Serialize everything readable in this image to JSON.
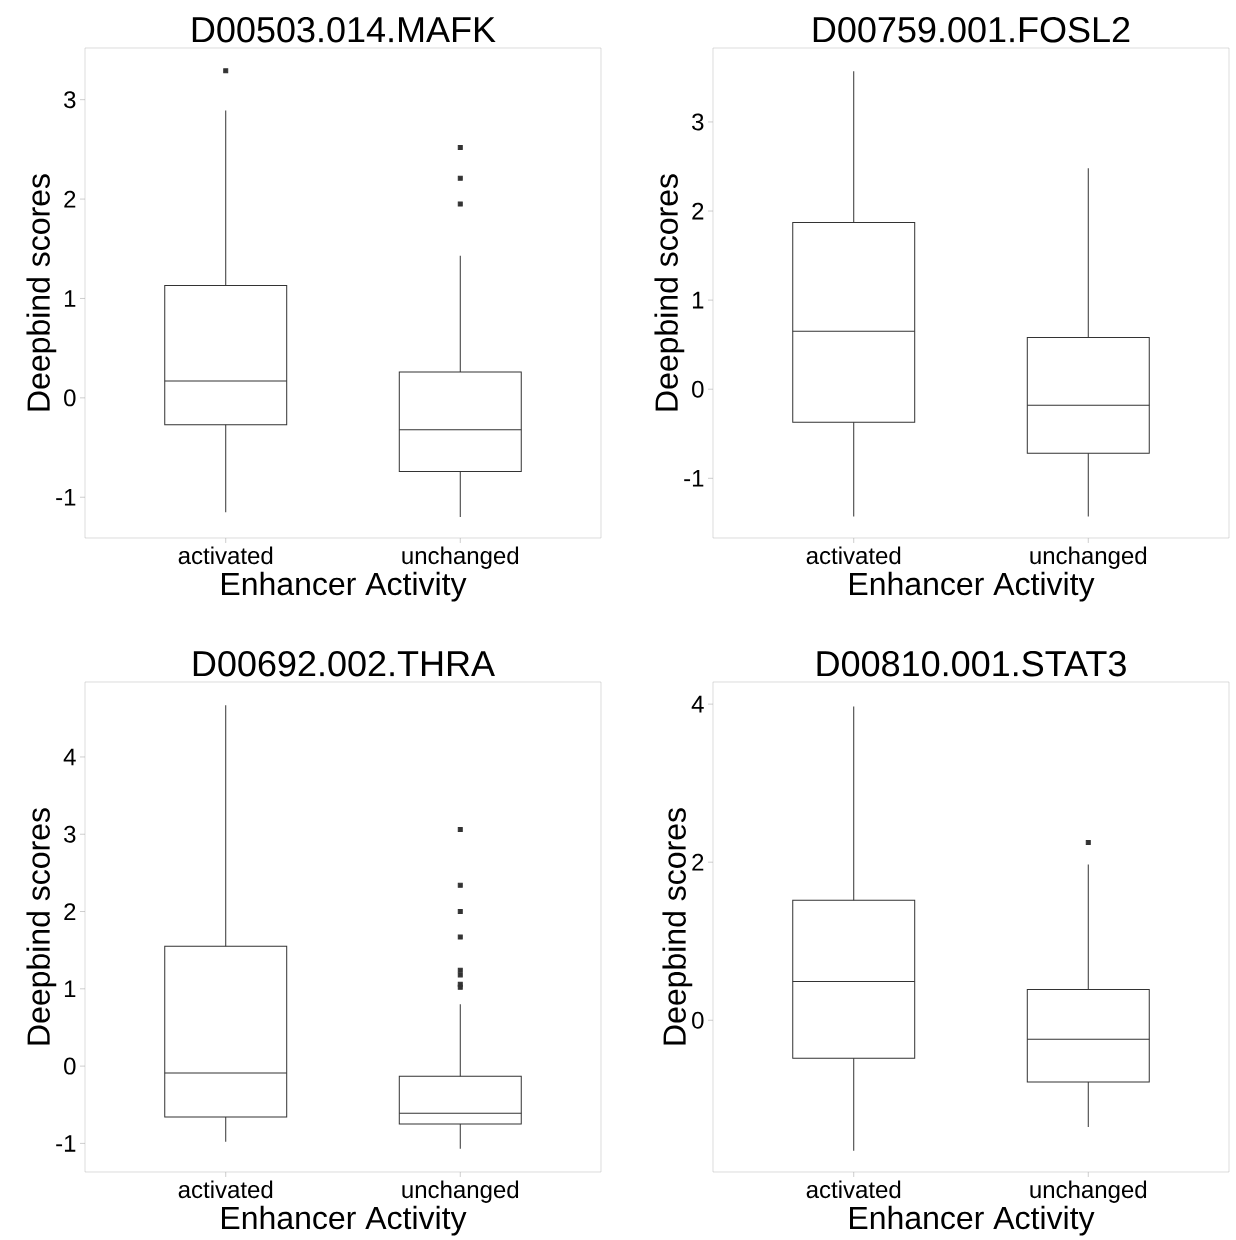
{
  "chart_data": [
    {
      "type": "box",
      "title": "D00503.014.MAFK",
      "xlabel": "Enhancer Activity",
      "ylabel": "Deepbind scores",
      "categories": [
        "activated",
        "unchanged"
      ],
      "color": "#333333",
      "ylim": [
        -1.41,
        3.52
      ],
      "yticks": [
        -1,
        0,
        1,
        2,
        3
      ],
      "grid": false,
      "boxes": [
        {
          "low": -1.15,
          "q1": -0.27,
          "median": 0.17,
          "q3": 1.13,
          "high": 2.89,
          "outliers": [
            3.29
          ]
        },
        {
          "low": -1.2,
          "q1": -0.74,
          "median": -0.32,
          "q3": 0.26,
          "high": 1.43,
          "outliers": [
            1.95,
            2.21,
            2.52
          ]
        }
      ]
    },
    {
      "type": "box",
      "title": "D00759.001.FOSL2",
      "xlabel": "Enhancer Activity",
      "ylabel": "Deepbind scores",
      "categories": [
        "activated",
        "unchanged"
      ],
      "color": "#333333",
      "ylim": [
        -1.67,
        3.83
      ],
      "yticks": [
        -1,
        0,
        1,
        2,
        3
      ],
      "grid": false,
      "boxes": [
        {
          "low": -1.43,
          "q1": -0.37,
          "median": 0.65,
          "q3": 1.87,
          "high": 3.57
        },
        {
          "low": -1.43,
          "q1": -0.72,
          "median": -0.18,
          "q3": 0.58,
          "high": 2.48
        }
      ]
    },
    {
      "type": "box",
      "title": "D00692.002.THRA",
      "xlabel": "Enhancer Activity",
      "ylabel": "Deepbind scores",
      "categories": [
        "activated",
        "unchanged"
      ],
      "color": "#333333",
      "ylim": [
        -1.37,
        4.97
      ],
      "yticks": [
        -1,
        0,
        1,
        2,
        3,
        4
      ],
      "grid": false,
      "boxes": [
        {
          "low": -0.98,
          "q1": -0.66,
          "median": -0.09,
          "q3": 1.55,
          "high": 4.67
        },
        {
          "low": -1.07,
          "q1": -0.75,
          "median": -0.61,
          "q3": -0.13,
          "high": 0.8,
          "outliers": [
            1.02,
            1.06,
            1.18,
            1.24,
            1.67,
            2.0,
            2.34,
            3.06
          ]
        }
      ]
    },
    {
      "type": "box",
      "title": "D00810.001.STAT3",
      "xlabel": "Enhancer Activity",
      "ylabel": "Deepbind scores",
      "categories": [
        "activated",
        "unchanged"
      ],
      "color": "#333333",
      "ylim": [
        -1.92,
        4.28
      ],
      "yticks": [
        0,
        2,
        4
      ],
      "grid": false,
      "boxes": [
        {
          "low": -1.65,
          "q1": -0.48,
          "median": 0.49,
          "q3": 1.52,
          "high": 3.97
        },
        {
          "low": -1.35,
          "q1": -0.78,
          "median": -0.24,
          "q3": 0.39,
          "high": 1.97,
          "outliers": [
            2.25
          ]
        }
      ]
    }
  ]
}
